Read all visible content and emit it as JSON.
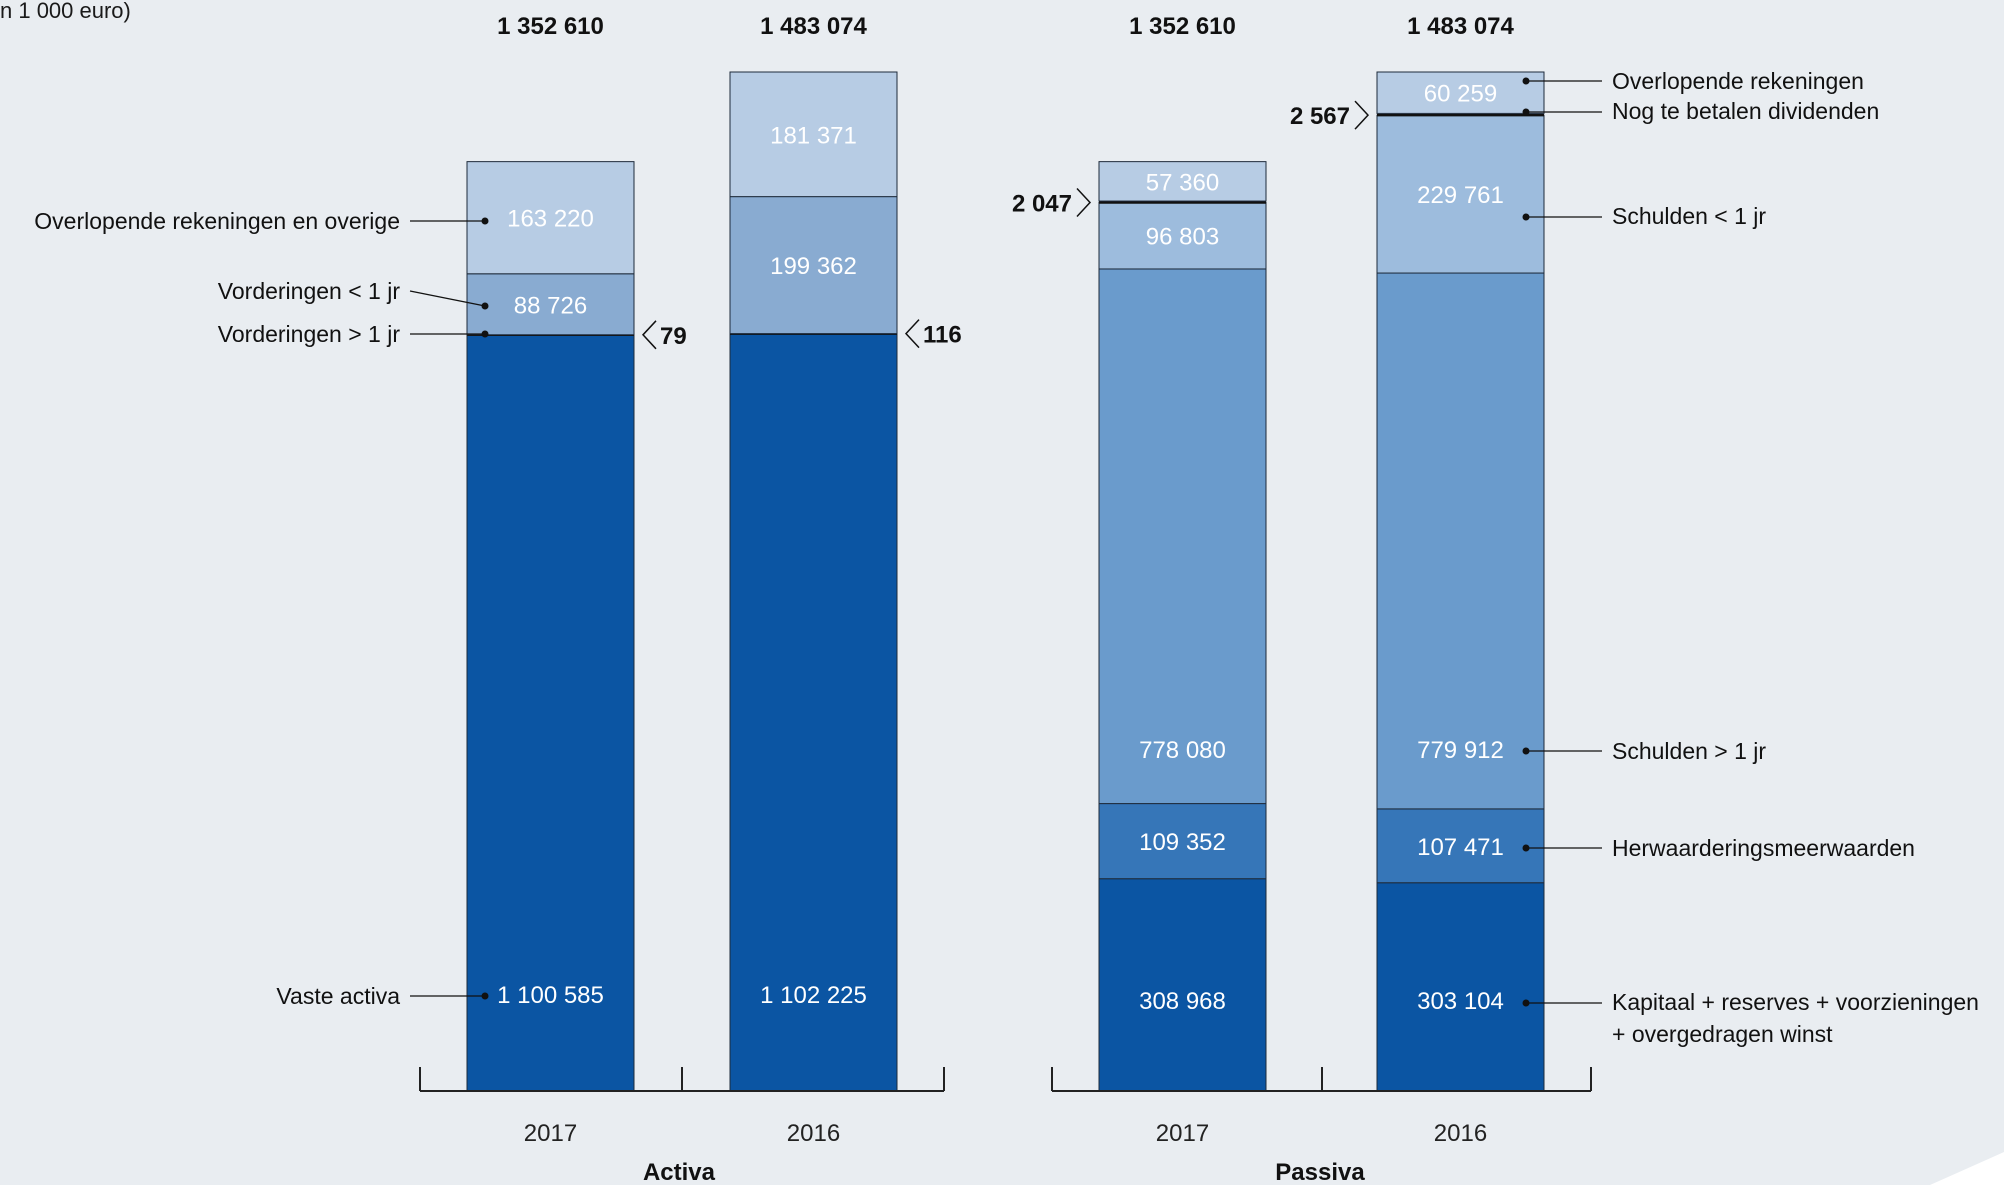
{
  "unit_label": "n 1 000 euro)",
  "chart_data": [
    {
      "type": "bar",
      "stacked": true,
      "title": "Activa",
      "categories": [
        "2017",
        "2016"
      ],
      "totals": [
        "1 352 610",
        "1 483 074"
      ],
      "series": [
        {
          "name": "Vaste activa",
          "values": [
            1100585,
            1102225
          ],
          "labels": [
            "1 100 585",
            "1 102 225"
          ],
          "color": "#0b55a3"
        },
        {
          "name": "Vorderingen > 1 jr",
          "values": [
            79,
            116
          ],
          "labels": [
            "79",
            "116"
          ],
          "color": "#0b55a3"
        },
        {
          "name": "Vorderingen < 1 jr",
          "values": [
            88726,
            199362
          ],
          "labels": [
            "88 726",
            "199 362"
          ],
          "color": "#89abd1"
        },
        {
          "name": "Overlopende rekeningen en overige",
          "values": [
            163220,
            181371
          ],
          "labels": [
            "163 220",
            "181 371"
          ],
          "color": "#b7cce4"
        }
      ]
    },
    {
      "type": "bar",
      "stacked": true,
      "title": "Passiva",
      "categories": [
        "2017",
        "2016"
      ],
      "totals": [
        "1 352 610",
        "1 483 074"
      ],
      "series": [
        {
          "name": "Kapitaal + reserves + voorzieningen\n+ overgedragen winst",
          "values": [
            308968,
            303104
          ],
          "labels": [
            "308 968",
            "303 104"
          ],
          "color": "#0b55a3"
        },
        {
          "name": "Herwaarderingsmeerwaarden",
          "values": [
            109352,
            107471
          ],
          "labels": [
            "109 352",
            "107 471"
          ],
          "color": "#3676b8"
        },
        {
          "name": "Schulden > 1 jr",
          "values": [
            778080,
            779912
          ],
          "labels": [
            "778 080",
            "779 912"
          ],
          "color": "#6a9bcc"
        },
        {
          "name": "Schulden < 1 jr",
          "values": [
            96803,
            229761
          ],
          "labels": [
            "96 803",
            "229 761"
          ],
          "color": "#9dbcdd"
        },
        {
          "name": "Nog te betalen dividenden",
          "values": [
            2047,
            2567
          ],
          "labels": [
            "2 047",
            "2 567"
          ],
          "color": "#9dbcdd"
        },
        {
          "name": "Overlopende rekeningen",
          "values": [
            57360,
            60259
          ],
          "labels": [
            "57 360",
            "60 259"
          ],
          "color": "#b7cce4"
        }
      ]
    }
  ]
}
